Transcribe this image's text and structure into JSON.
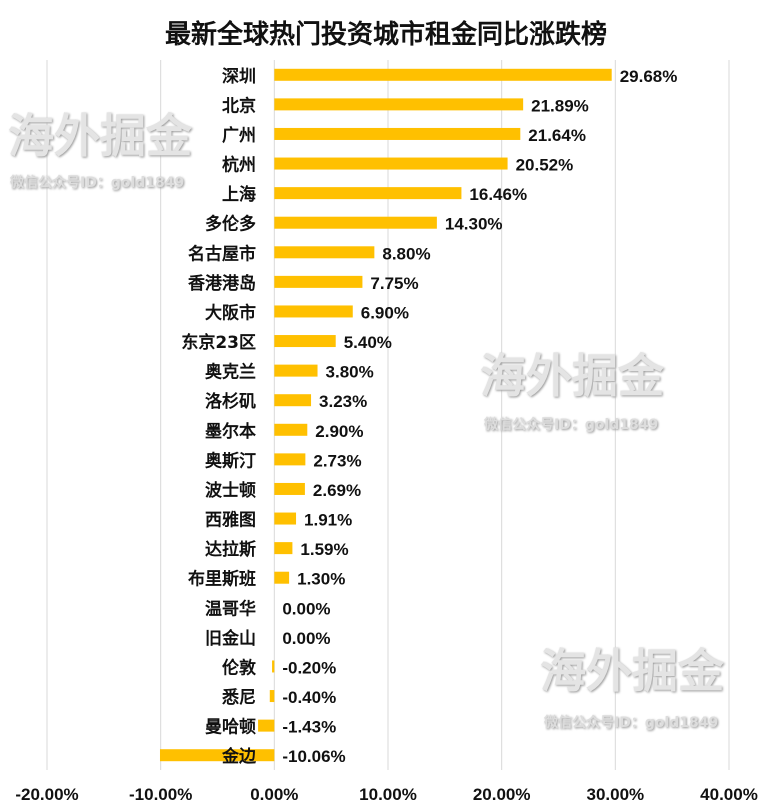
{
  "chart_data": {
    "type": "bar",
    "orientation": "horizontal",
    "title": "最新全球热门投资城市租金同比涨跌榜",
    "categories": [
      "深圳",
      "北京",
      "广州",
      "杭州",
      "上海",
      "多伦多",
      "名古屋市",
      "香港港岛",
      "大阪市",
      "东京23区",
      "奥克兰",
      "洛杉矶",
      "墨尔本",
      "奥斯汀",
      "波士顿",
      "西雅图",
      "达拉斯",
      "布里斯班",
      "温哥华",
      "旧金山",
      "伦敦",
      "悉尼",
      "曼哈顿",
      "金边"
    ],
    "values": [
      29.68,
      21.89,
      21.64,
      20.52,
      16.46,
      14.3,
      8.8,
      7.75,
      6.9,
      5.4,
      3.8,
      3.23,
      2.9,
      2.73,
      2.69,
      1.91,
      1.59,
      1.3,
      0.0,
      0.0,
      -0.2,
      -0.4,
      -1.43,
      -10.06
    ],
    "data_labels": [
      "29.68%",
      "21.89%",
      "21.64%",
      "20.52%",
      "16.46%",
      "14.30%",
      "8.80%",
      "7.75%",
      "6.90%",
      "5.40%",
      "3.80%",
      "3.23%",
      "2.90%",
      "2.73%",
      "2.69%",
      "1.91%",
      "1.59%",
      "1.30%",
      "0.00%",
      "0.00%",
      "-0.20%",
      "-0.40%",
      "-1.43%",
      "-10.06%"
    ],
    "xlim": [
      -20,
      40
    ],
    "xticks": [
      -20,
      -10,
      0,
      10,
      20,
      30,
      40
    ],
    "xtick_labels": [
      "-20.00%",
      "-10.00%",
      "0.00%",
      "10.00%",
      "20.00%",
      "30.00%",
      "40.00%"
    ],
    "xlabel": "",
    "ylabel": "",
    "grid": true,
    "bar_color": "#FFC000"
  },
  "watermark": {
    "title": "海外掘金",
    "subtitle": "微信公众号ID：gold1849"
  }
}
